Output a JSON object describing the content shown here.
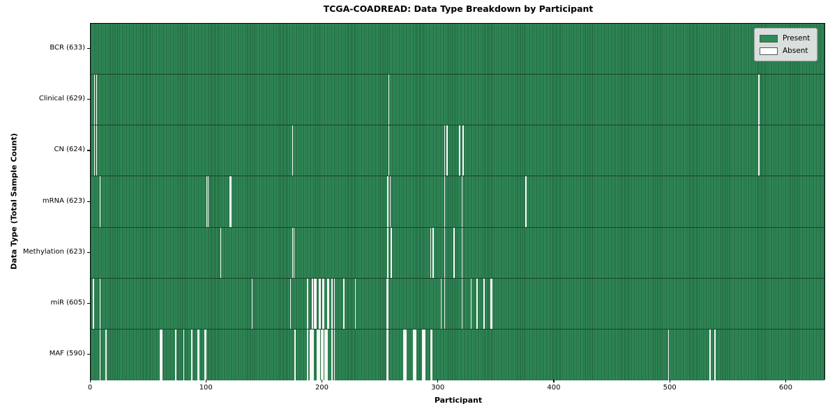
{
  "figure": {
    "title": "TCGA-COADREAD: Data Type Breakdown by Participant",
    "xlabel": "Participant",
    "ylabel": "Data Type (Total Sample Count)"
  },
  "legend": {
    "present_label": "Present",
    "absent_label": "Absent"
  },
  "chart_data": {
    "type": "heatmap",
    "title": "TCGA-COADREAD: Data Type Breakdown by Participant",
    "xlabel": "Participant",
    "ylabel": "Data Type (Total Sample Count)",
    "n_participants": 633,
    "xlim": [
      0,
      634
    ],
    "x_ticks": [
      0,
      100,
      200,
      300,
      400,
      500,
      600
    ],
    "grid": false,
    "legend_position": "upper right",
    "legend_entries": [
      {
        "label": "Present",
        "color": "#2e8b57"
      },
      {
        "label": "Absent",
        "color": "#ffffff"
      }
    ],
    "colors": {
      "present": "#2e8b57",
      "present_edge": "#1e5c3a",
      "absent": "#f7f7f5"
    },
    "rows": [
      {
        "name": "BCR",
        "label": "BCR (633)",
        "total_samples": 633,
        "absent_participants": []
      },
      {
        "name": "Clinical",
        "label": "Clinical (629)",
        "total_samples": 629,
        "absent_participants": [
          3,
          5,
          257,
          576
        ]
      },
      {
        "name": "CN",
        "label": "CN (624)",
        "total_samples": 624,
        "absent_participants": [
          3,
          5,
          174,
          257,
          305,
          307,
          318,
          321,
          576
        ]
      },
      {
        "name": "mRNA",
        "label": "mRNA (623)",
        "total_samples": 623,
        "absent_participants": [
          8,
          100,
          101,
          120,
          121,
          256,
          258,
          305,
          320,
          375
        ]
      },
      {
        "name": "Methylation",
        "label": "Methylation (623)",
        "total_samples": 623,
        "absent_participants": [
          112,
          174,
          175,
          256,
          259,
          293,
          295,
          305,
          313,
          320
        ]
      },
      {
        "name": "miR",
        "label": "miR (605)",
        "total_samples": 605,
        "absent_participants": [
          2,
          8,
          139,
          172,
          187,
          191,
          193,
          194,
          197,
          198,
          200,
          201,
          204,
          205,
          208,
          210,
          218,
          228,
          255,
          256,
          302,
          305,
          320,
          328,
          333,
          339,
          345,
          346
        ]
      },
      {
        "name": "MAF",
        "label": "MAF (590)",
        "total_samples": 590,
        "absent_participants": [
          8,
          13,
          60,
          61,
          73,
          80,
          87,
          92,
          93,
          98,
          99,
          176,
          187,
          189,
          190,
          191,
          192,
          195,
          196,
          197,
          199,
          200,
          202,
          203,
          204,
          208,
          210,
          255,
          256,
          270,
          271,
          272,
          278,
          279,
          280,
          286,
          287,
          288,
          293,
          294,
          498,
          534,
          538
        ]
      }
    ]
  }
}
